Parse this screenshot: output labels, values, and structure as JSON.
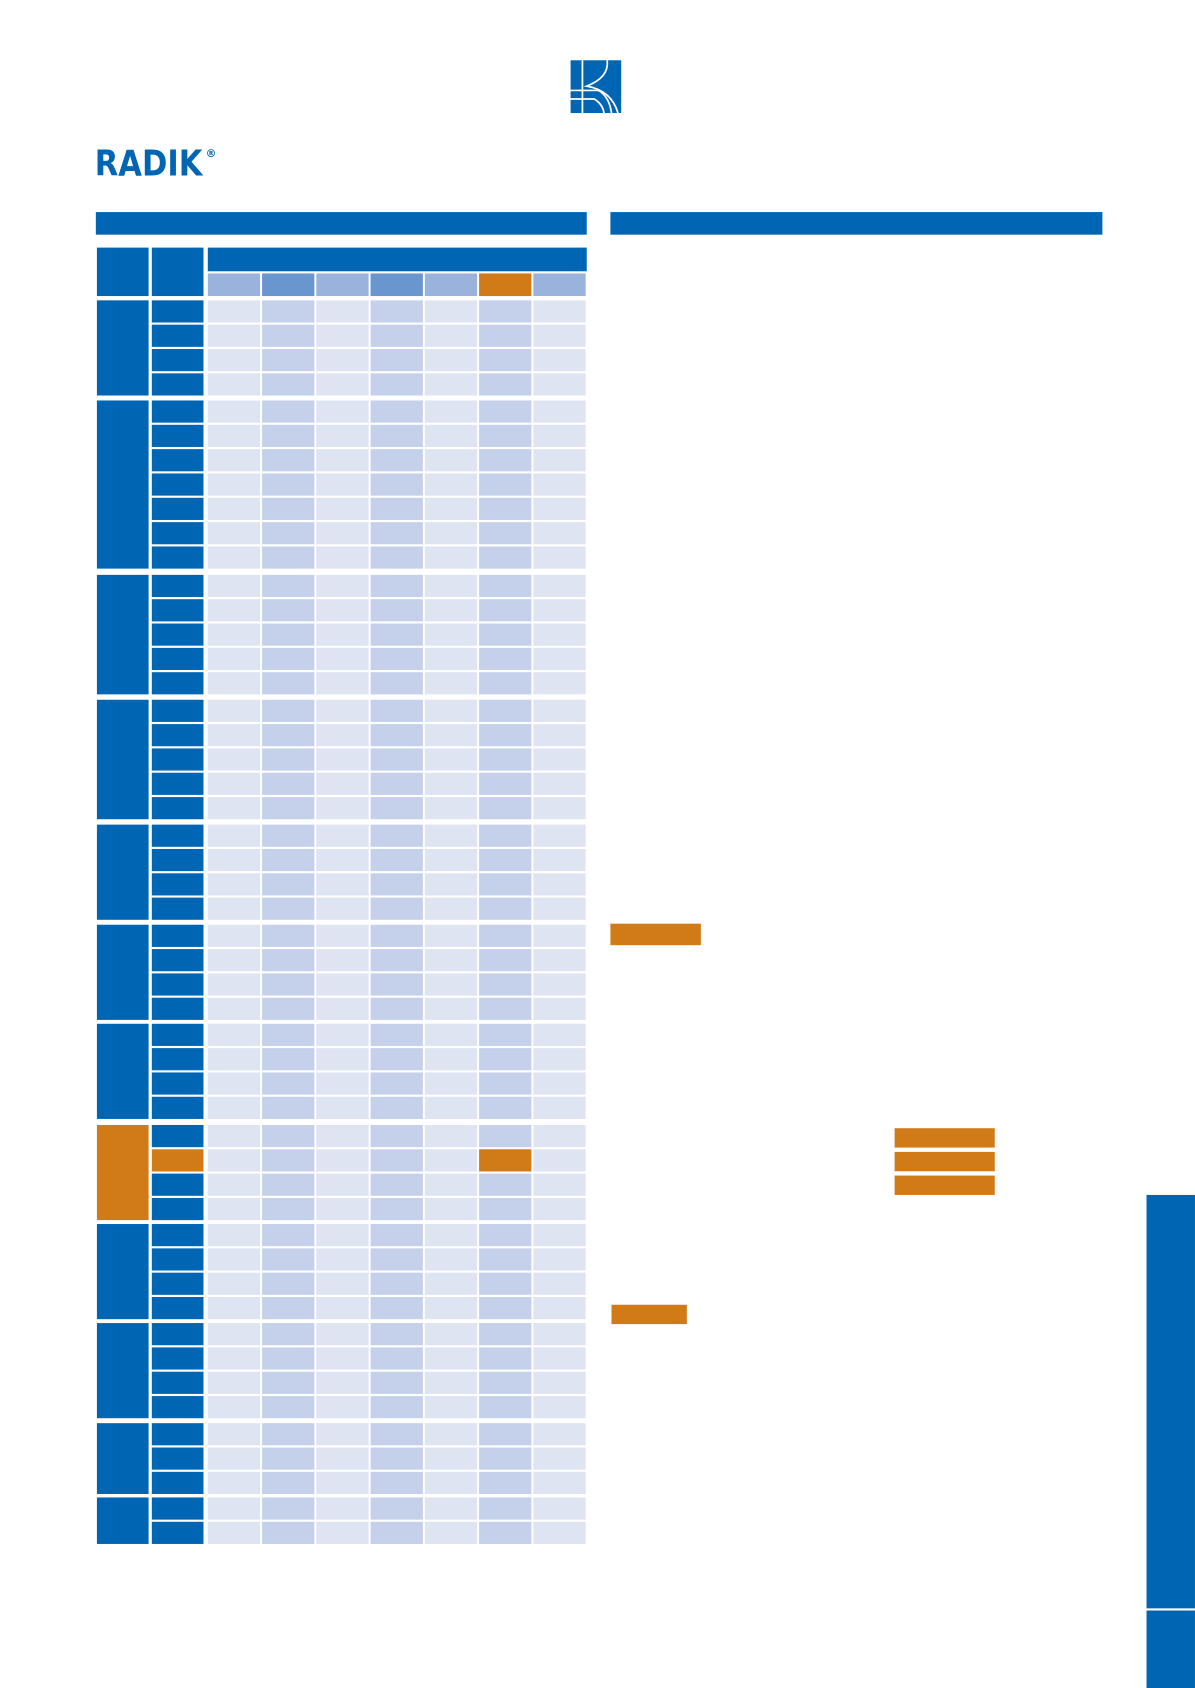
{
  "header": {
    "brand": "RADIK",
    "registered": "®"
  }
}
